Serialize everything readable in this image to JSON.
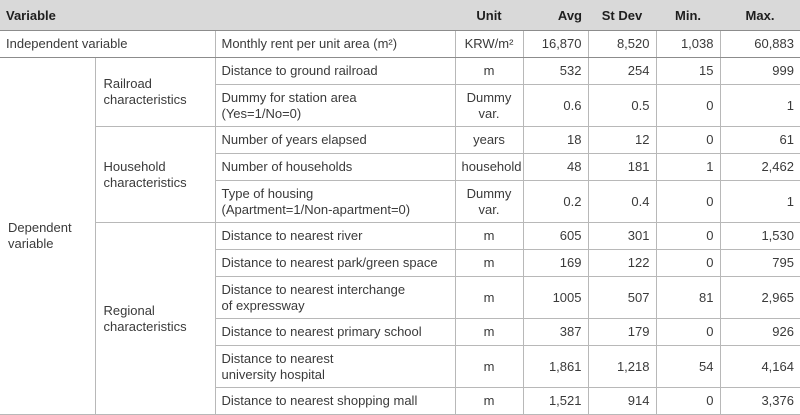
{
  "headers": {
    "variable": "Variable",
    "unit": "Unit",
    "avg": "Avg",
    "stdev": "St Dev",
    "min": "Min.",
    "max": "Max."
  },
  "independent": {
    "label": "Independent variable",
    "name": "Monthly rent per unit area (m²)",
    "unit": "KRW/m²",
    "avg": "16,870",
    "stdev": "8,520",
    "min": "1,038",
    "max": "60,883"
  },
  "dependent_label_1": "Dependent",
  "dependent_label_2": "variable",
  "groups": {
    "railroad_1": "Railroad",
    "railroad_2": "characteristics",
    "household_1": "Household",
    "household_2": "characteristics",
    "regional_1": "Regional",
    "regional_2": "characteristics"
  },
  "rows": [
    {
      "name1": "Distance to ground railroad",
      "name2": "",
      "unit1": "m",
      "unit2": "",
      "avg": "532",
      "stdev": "254",
      "min": "15",
      "max": "999"
    },
    {
      "name1": "Dummy for station area",
      "name2": "(Yes=1/No=0)",
      "unit1": "Dummy",
      "unit2": "var.",
      "avg": "0.6",
      "stdev": "0.5",
      "min": "0",
      "max": "1"
    },
    {
      "name1": "Number of years elapsed",
      "name2": "",
      "unit1": "years",
      "unit2": "",
      "avg": "18",
      "stdev": "12",
      "min": "0",
      "max": "61"
    },
    {
      "name1": "Number of households",
      "name2": "",
      "unit1": "household",
      "unit2": "",
      "avg": "48",
      "stdev": "181",
      "min": "1",
      "max": "2,462"
    },
    {
      "name1": "Type of housing",
      "name2": "(Apartment=1/Non-apartment=0)",
      "unit1": "Dummy",
      "unit2": "var.",
      "avg": "0.2",
      "stdev": "0.4",
      "min": "0",
      "max": "1"
    },
    {
      "name1": "Distance to nearest river",
      "name2": "",
      "unit1": "m",
      "unit2": "",
      "avg": "605",
      "stdev": "301",
      "min": "0",
      "max": "1,530"
    },
    {
      "name1": "Distance to nearest park/green space",
      "name2": "",
      "unit1": "m",
      "unit2": "",
      "avg": "169",
      "stdev": "122",
      "min": "0",
      "max": "795"
    },
    {
      "name1": "Distance to nearest interchange",
      "name2": "of expressway",
      "unit1": "m",
      "unit2": "",
      "avg": "1005",
      "stdev": "507",
      "min": "81",
      "max": "2,965"
    },
    {
      "name1": "Distance to nearest primary school",
      "name2": "",
      "unit1": "m",
      "unit2": "",
      "avg": "387",
      "stdev": "179",
      "min": "0",
      "max": "926"
    },
    {
      "name1": "Distance to nearest",
      "name2": "university hospital",
      "unit1": "m",
      "unit2": "",
      "avg": "1,861",
      "stdev": "1,218",
      "min": "54",
      "max": "4,164"
    },
    {
      "name1": "Distance to nearest shopping mall",
      "name2": "",
      "unit1": "m",
      "unit2": "",
      "avg": "1,521",
      "stdev": "914",
      "min": "0",
      "max": "3,376"
    }
  ]
}
